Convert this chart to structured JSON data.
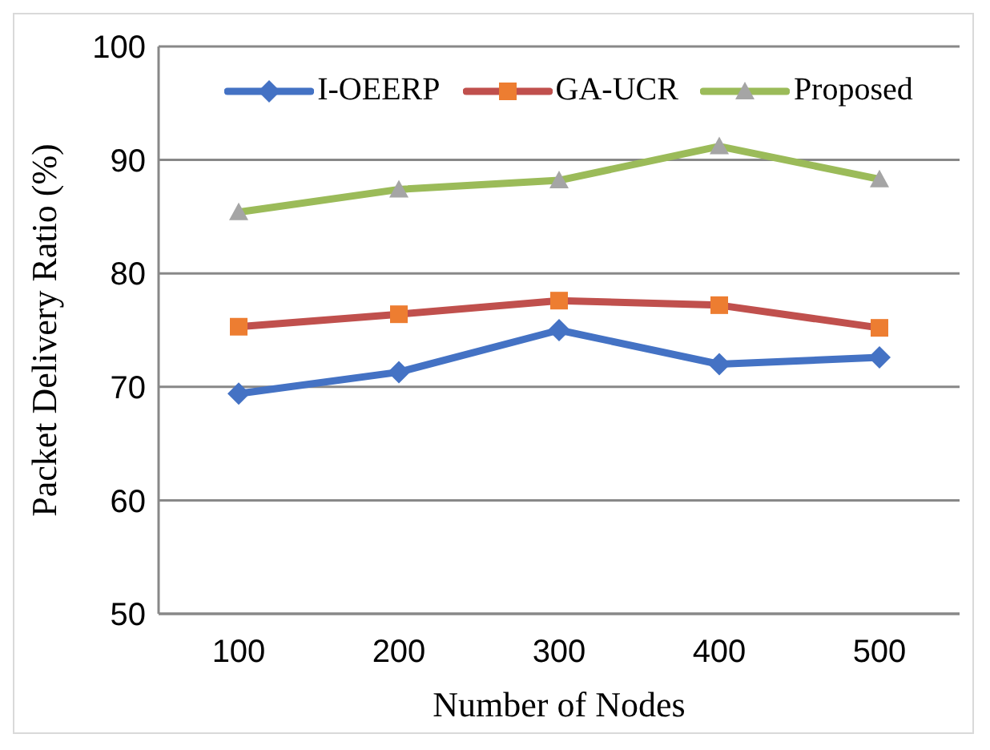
{
  "chart_data": {
    "type": "line",
    "xlabel": "Number of Nodes",
    "ylabel": "Packet Delivery Ratio (%)",
    "categories": [
      "100",
      "200",
      "300",
      "400",
      "500"
    ],
    "series": [
      {
        "name": "I-OEERP",
        "color": "#4472c4",
        "marker": "diamond",
        "values": [
          69.4,
          71.3,
          75.0,
          72.0,
          72.6
        ]
      },
      {
        "name": "GA-UCR",
        "color": "#c0504d",
        "marker": "square",
        "values": [
          75.3,
          76.4,
          77.6,
          77.2,
          75.2
        ]
      },
      {
        "name": "Proposed",
        "color": "#9bbb59",
        "marker": "triangle",
        "values": [
          85.4,
          87.4,
          88.2,
          91.2,
          88.3
        ]
      }
    ],
    "ylim": [
      50,
      100
    ],
    "yticks": [
      50,
      60,
      70,
      80,
      90,
      100
    ],
    "grid": "y",
    "legend": "top"
  }
}
